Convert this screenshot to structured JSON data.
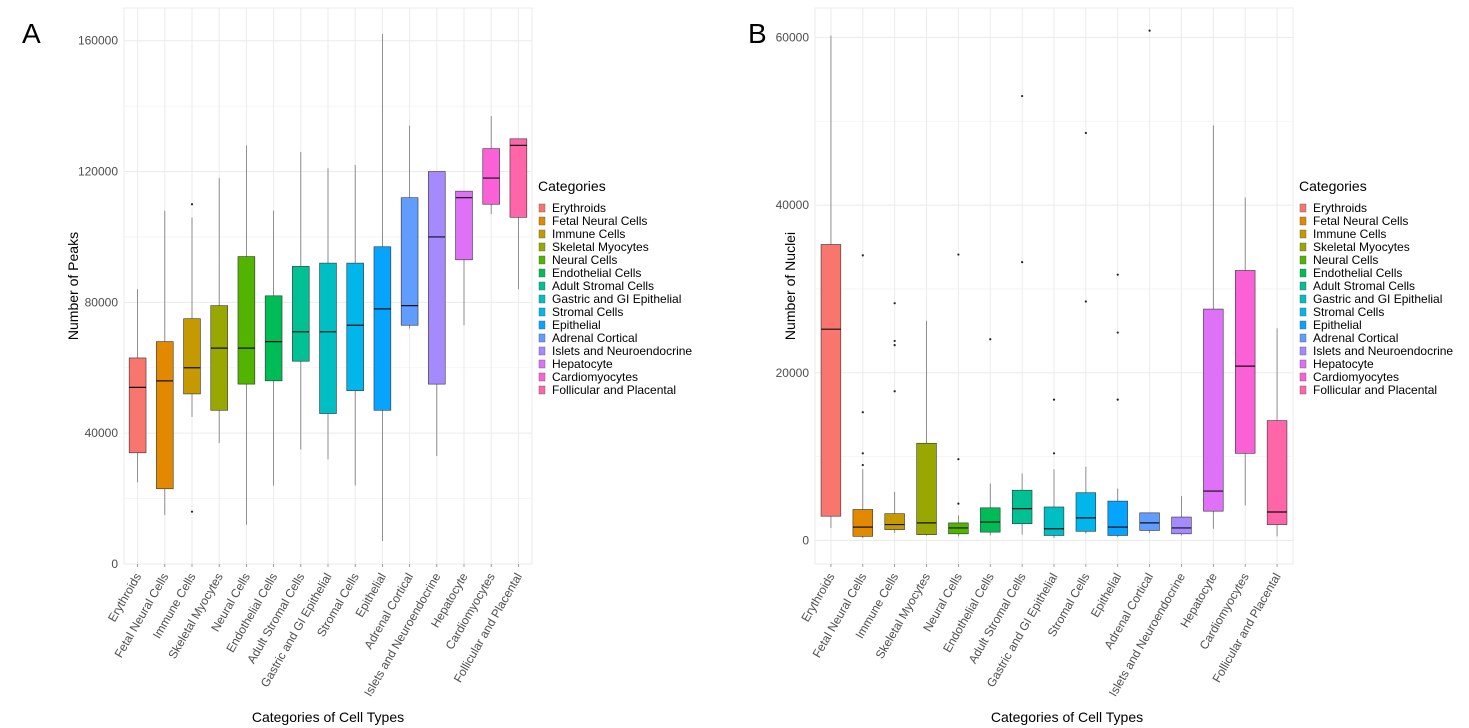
{
  "panels": {
    "a_label": "A",
    "b_label": "B"
  },
  "chart_data": [
    {
      "type": "box",
      "panel": "A",
      "xlabel": "Categories of Cell Types",
      "ylabel": "Number of Peaks",
      "ylim": [
        0,
        170000
      ],
      "yticks": [
        0,
        40000,
        80000,
        120000,
        160000
      ],
      "ytick_labels": [
        "0",
        "40000",
        "80000",
        "120000",
        "160000"
      ],
      "legend_title": "Categories",
      "categories": [
        "Erythroids",
        "Fetal Neural Cells",
        "Immune Cells",
        "Skeletal Myocytes",
        "Neural Cells",
        "Endothelial Cells",
        "Adult Stromal Cells",
        "Gastric and GI Epithelial",
        "Stromal Cells",
        "Epithelial",
        "Adrenal Cortical",
        "Islets and Neuroendocrine",
        "Hepatocyte",
        "Cardiomyocytes",
        "Follicular and Placental"
      ],
      "colors": [
        "#F8766D",
        "#E38900",
        "#C49A00",
        "#99A800",
        "#53B400",
        "#00BC56",
        "#00C094",
        "#00BFC4",
        "#00B6EB",
        "#06A4FF",
        "#619CFF",
        "#A58AFF",
        "#DF70F8",
        "#FB61D7",
        "#FF66A8"
      ],
      "boxes": [
        {
          "whisker_low": 25000,
          "q1": 34000,
          "median": 54000,
          "q3": 63000,
          "whisker_high": 84000,
          "outliers": []
        },
        {
          "whisker_low": 15000,
          "q1": 23000,
          "median": 56000,
          "q3": 68000,
          "whisker_high": 108000,
          "outliers": []
        },
        {
          "whisker_low": 45000,
          "q1": 52000,
          "median": 60000,
          "q3": 75000,
          "whisker_high": 106000,
          "outliers": [
            16000,
            110000
          ]
        },
        {
          "whisker_low": 37000,
          "q1": 47000,
          "median": 66000,
          "q3": 79000,
          "whisker_high": 118000,
          "outliers": []
        },
        {
          "whisker_low": 12000,
          "q1": 55000,
          "median": 66000,
          "q3": 94000,
          "whisker_high": 128000,
          "outliers": []
        },
        {
          "whisker_low": 24000,
          "q1": 56000,
          "median": 68000,
          "q3": 82000,
          "whisker_high": 108000,
          "outliers": []
        },
        {
          "whisker_low": 35000,
          "q1": 62000,
          "median": 71000,
          "q3": 91000,
          "whisker_high": 126000,
          "outliers": []
        },
        {
          "whisker_low": 32000,
          "q1": 46000,
          "median": 71000,
          "q3": 92000,
          "whisker_high": 121000,
          "outliers": []
        },
        {
          "whisker_low": 24000,
          "q1": 53000,
          "median": 73000,
          "q3": 92000,
          "whisker_high": 122000,
          "outliers": []
        },
        {
          "whisker_low": 7000,
          "q1": 47000,
          "median": 78000,
          "q3": 97000,
          "whisker_high": 162000,
          "outliers": []
        },
        {
          "whisker_low": 72000,
          "q1": 73000,
          "median": 79000,
          "q3": 112000,
          "whisker_high": 134000,
          "outliers": []
        },
        {
          "whisker_low": 33000,
          "q1": 55000,
          "median": 100000,
          "q3": 120000,
          "whisker_high": 120000,
          "outliers": []
        },
        {
          "whisker_low": 73000,
          "q1": 93000,
          "median": 112000,
          "q3": 114000,
          "whisker_high": 114000,
          "outliers": []
        },
        {
          "whisker_low": 107000,
          "q1": 110000,
          "median": 118000,
          "q3": 127000,
          "whisker_high": 137000,
          "outliers": []
        },
        {
          "whisker_low": 84000,
          "q1": 106000,
          "median": 128000,
          "q3": 130000,
          "whisker_high": 130000,
          "outliers": []
        }
      ]
    },
    {
      "type": "box",
      "panel": "B",
      "xlabel": "Categories of Cell Types",
      "ylabel": "Number of Nuclei",
      "ylim": [
        -2800,
        63500
      ],
      "yticks": [
        0,
        20000,
        40000,
        60000
      ],
      "ytick_labels": [
        "0",
        "20000",
        "40000",
        "60000"
      ],
      "legend_title": "Categories",
      "categories": [
        "Erythroids",
        "Fetal Neural Cells",
        "Immune Cells",
        "Skeletal Myocytes",
        "Neural Cells",
        "Endothelial Cells",
        "Adult Stromal Cells",
        "Gastric and GI Epithelial",
        "Stromal Cells",
        "Epithelial",
        "Adrenal Cortical",
        "Islets and Neuroendocrine",
        "Hepatocyte",
        "Cardiomyocytes",
        "Follicular and Placental"
      ],
      "colors": [
        "#F8766D",
        "#E38900",
        "#C49A00",
        "#99A800",
        "#53B400",
        "#00BC56",
        "#00C094",
        "#00BFC4",
        "#00B6EB",
        "#06A4FF",
        "#619CFF",
        "#A58AFF",
        "#DF70F8",
        "#FB61D7",
        "#FF66A8"
      ],
      "boxes": [
        {
          "whisker_low": 1500,
          "q1": 2900,
          "median": 25200,
          "q3": 35300,
          "whisker_high": 60200,
          "outliers": []
        },
        {
          "whisker_low": 300,
          "q1": 500,
          "median": 1600,
          "q3": 3700,
          "whisker_high": 8500,
          "outliers": [
            9000,
            10400,
            15300,
            34000
          ]
        },
        {
          "whisker_low": 900,
          "q1": 1300,
          "median": 1900,
          "q3": 3200,
          "whisker_high": 5800,
          "outliers": [
            17800,
            23300,
            23800,
            28300
          ]
        },
        {
          "whisker_low": 600,
          "q1": 700,
          "median": 2100,
          "q3": 11600,
          "whisker_high": 26200,
          "outliers": []
        },
        {
          "whisker_low": 500,
          "q1": 800,
          "median": 1500,
          "q3": 2100,
          "whisker_high": 3000,
          "outliers": [
            4400,
            9700,
            34100
          ]
        },
        {
          "whisker_low": 600,
          "q1": 1000,
          "median": 2200,
          "q3": 3900,
          "whisker_high": 6800,
          "outliers": [
            24000
          ]
        },
        {
          "whisker_low": 700,
          "q1": 2000,
          "median": 3800,
          "q3": 6000,
          "whisker_high": 8000,
          "outliers": [
            33200,
            53000
          ]
        },
        {
          "whisker_low": 300,
          "q1": 600,
          "median": 1400,
          "q3": 4000,
          "whisker_high": 8500,
          "outliers": [
            10400,
            16800
          ]
        },
        {
          "whisker_low": 800,
          "q1": 1100,
          "median": 2700,
          "q3": 5700,
          "whisker_high": 8800,
          "outliers": [
            28500,
            48600
          ]
        },
        {
          "whisker_low": 400,
          "q1": 600,
          "median": 1600,
          "q3": 4700,
          "whisker_high": 6200,
          "outliers": [
            16800,
            24800,
            31700
          ]
        },
        {
          "whisker_low": 900,
          "q1": 1200,
          "median": 2100,
          "q3": 3300,
          "whisker_high": 3300,
          "outliers": [
            60800
          ]
        },
        {
          "whisker_low": 600,
          "q1": 800,
          "median": 1500,
          "q3": 2800,
          "whisker_high": 5300,
          "outliers": []
        },
        {
          "whisker_low": 1400,
          "q1": 3500,
          "median": 5900,
          "q3": 27600,
          "whisker_high": 49500,
          "outliers": []
        },
        {
          "whisker_low": 4200,
          "q1": 10400,
          "median": 20800,
          "q3": 32200,
          "whisker_high": 40900,
          "outliers": []
        },
        {
          "whisker_low": 500,
          "q1": 1900,
          "median": 3400,
          "q3": 14300,
          "whisker_high": 25300,
          "outliers": []
        }
      ]
    }
  ]
}
